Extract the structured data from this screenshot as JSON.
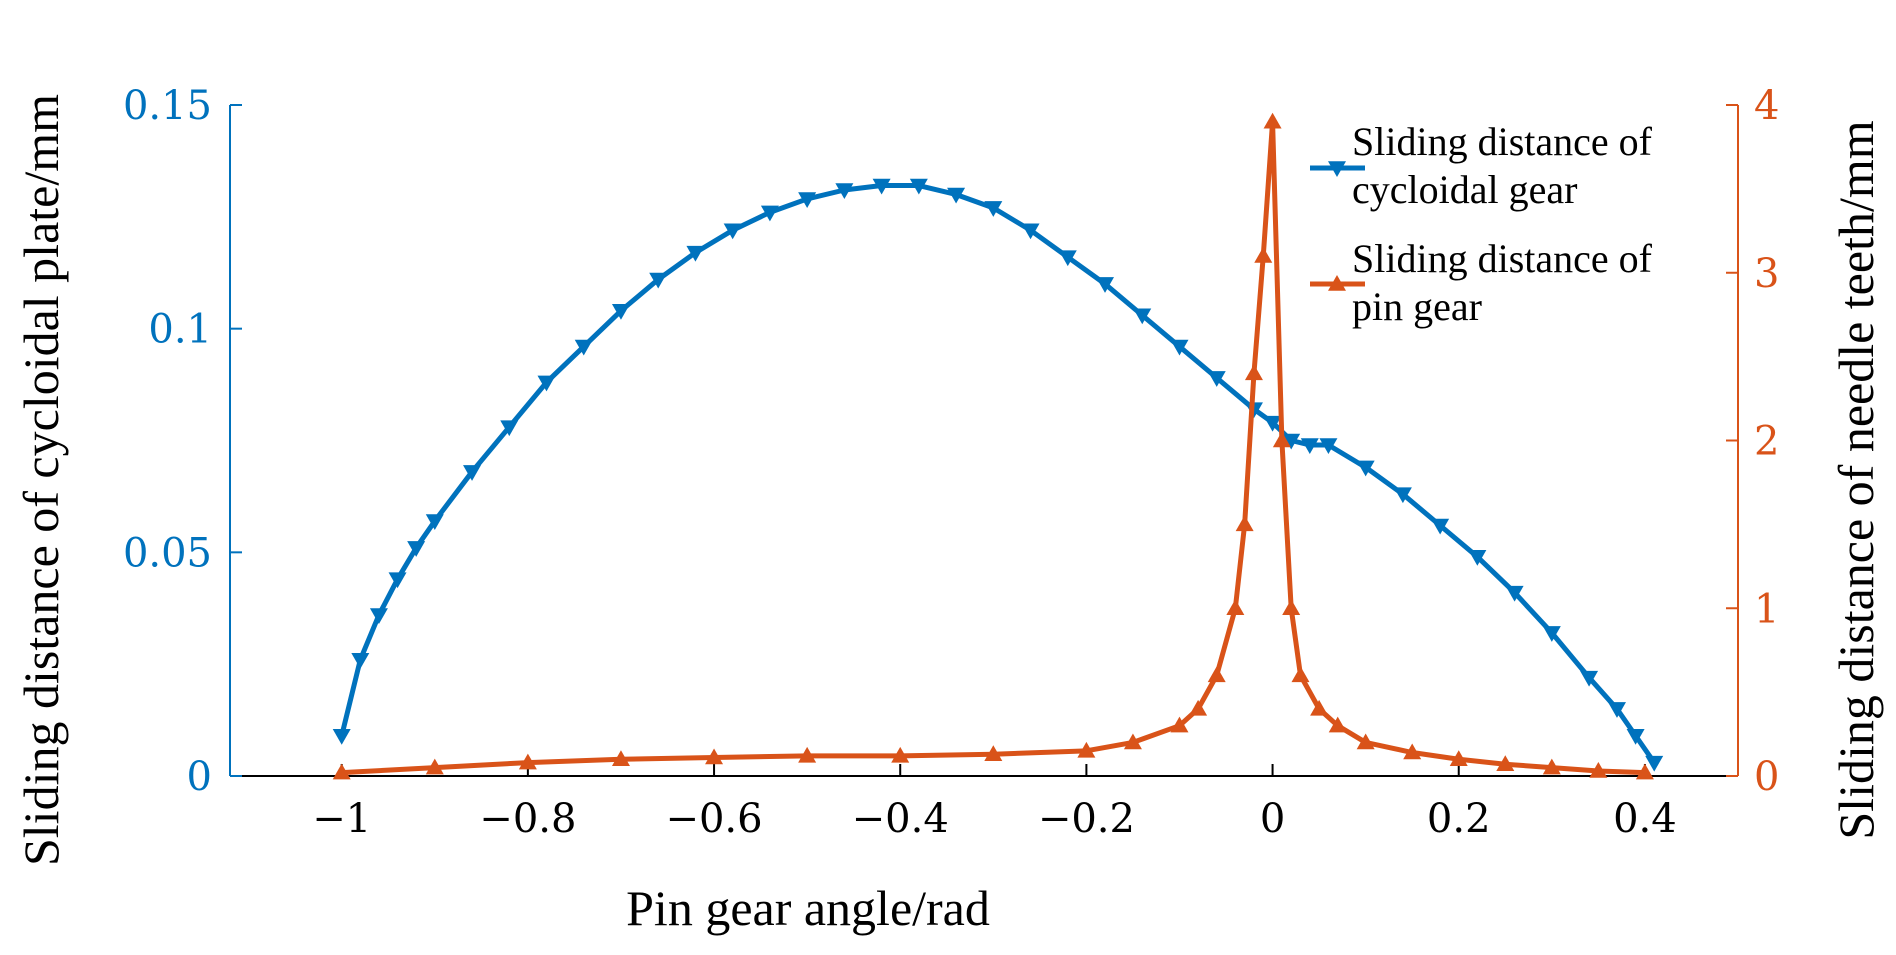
{
  "chart_data": {
    "type": "line",
    "xlabel": "Pin gear angle/rad",
    "ylabel_left": "Sliding distance of cycloidal plate/mm",
    "ylabel_right": "Sliding distance of needle teeth/mm",
    "xlim": [
      -1.12,
      0.5
    ],
    "ylim_left": [
      0,
      0.15
    ],
    "ylim_right": [
      0,
      4
    ],
    "x_ticks": [
      {
        "value": -1,
        "label": "−1"
      },
      {
        "value": -0.8,
        "label": "−0.8"
      },
      {
        "value": -0.6,
        "label": "−0.6"
      },
      {
        "value": -0.4,
        "label": "−0.4"
      },
      {
        "value": -0.2,
        "label": "−0.2"
      },
      {
        "value": 0,
        "label": "0"
      },
      {
        "value": 0.2,
        "label": "0.2"
      },
      {
        "value": 0.4,
        "label": "0.4"
      }
    ],
    "y_left_ticks": [
      {
        "value": 0,
        "label": "0"
      },
      {
        "value": 0.05,
        "label": "0.05"
      },
      {
        "value": 0.1,
        "label": "0.1"
      },
      {
        "value": 0.15,
        "label": "0.15"
      }
    ],
    "y_right_ticks": [
      {
        "value": 0,
        "label": "0"
      },
      {
        "value": 1,
        "label": "1"
      },
      {
        "value": 2,
        "label": "2"
      },
      {
        "value": 3,
        "label": "3"
      },
      {
        "value": 4,
        "label": "4"
      }
    ],
    "legend_position": "top-right",
    "grid": false,
    "series": [
      {
        "name_line1": "Sliding distance of",
        "name_line2": "cycloidal gear",
        "axis": "left",
        "color": "#0072BD",
        "marker": "triangle-down",
        "x": [
          -1.0,
          -0.98,
          -0.96,
          -0.94,
          -0.92,
          -0.9,
          -0.86,
          -0.82,
          -0.78,
          -0.74,
          -0.7,
          -0.66,
          -0.62,
          -0.58,
          -0.54,
          -0.5,
          -0.46,
          -0.42,
          -0.38,
          -0.34,
          -0.3,
          -0.26,
          -0.22,
          -0.18,
          -0.14,
          -0.1,
          -0.06,
          -0.02,
          0.0,
          0.02,
          0.04,
          0.06,
          0.1,
          0.14,
          0.18,
          0.22,
          0.26,
          0.3,
          0.34,
          0.37,
          0.39,
          0.41
        ],
        "y": [
          0.009,
          0.026,
          0.036,
          0.044,
          0.051,
          0.057,
          0.068,
          0.078,
          0.088,
          0.096,
          0.104,
          0.111,
          0.117,
          0.122,
          0.126,
          0.129,
          0.131,
          0.132,
          0.132,
          0.13,
          0.127,
          0.122,
          0.116,
          0.11,
          0.103,
          0.096,
          0.089,
          0.082,
          0.079,
          0.075,
          0.074,
          0.074,
          0.069,
          0.063,
          0.056,
          0.049,
          0.041,
          0.032,
          0.022,
          0.015,
          0.009,
          0.003
        ]
      },
      {
        "name_line1": "Sliding distance of",
        "name_line2": "pin gear",
        "axis": "right",
        "color": "#D95319",
        "marker": "triangle-up",
        "x": [
          -1.0,
          -0.9,
          -0.8,
          -0.7,
          -0.6,
          -0.5,
          -0.4,
          -0.3,
          -0.2,
          -0.15,
          -0.1,
          -0.08,
          -0.06,
          -0.04,
          -0.03,
          -0.02,
          -0.01,
          0.0,
          0.01,
          0.02,
          0.03,
          0.05,
          0.07,
          0.1,
          0.15,
          0.2,
          0.25,
          0.3,
          0.35,
          0.4
        ],
        "y": [
          0.02,
          0.05,
          0.08,
          0.1,
          0.11,
          0.12,
          0.12,
          0.13,
          0.15,
          0.2,
          0.3,
          0.4,
          0.6,
          1.0,
          1.5,
          2.4,
          3.1,
          3.9,
          2.0,
          1.0,
          0.6,
          0.4,
          0.3,
          0.2,
          0.14,
          0.1,
          0.07,
          0.05,
          0.03,
          0.02
        ]
      }
    ]
  }
}
